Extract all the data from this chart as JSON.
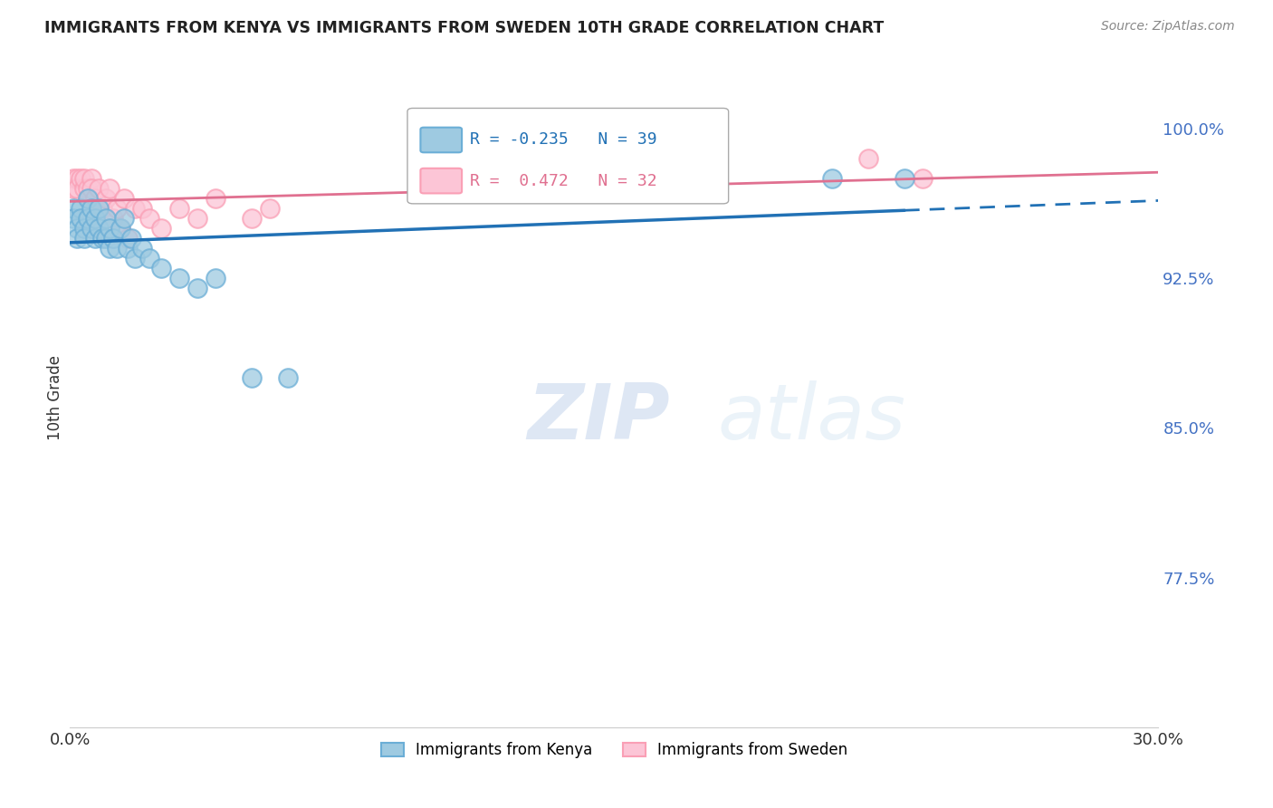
{
  "title": "IMMIGRANTS FROM KENYA VS IMMIGRANTS FROM SWEDEN 10TH GRADE CORRELATION CHART",
  "source": "Source: ZipAtlas.com",
  "ylabel": "10th Grade",
  "xlim": [
    0.0,
    0.3
  ],
  "ylim": [
    0.7,
    1.03
  ],
  "ytick_positions": [
    1.0,
    0.925,
    0.85,
    0.775
  ],
  "ytick_labels": [
    "100.0%",
    "92.5%",
    "85.0%",
    "77.5%"
  ],
  "kenya_color": "#6baed6",
  "kenya_color_fill": "#9ecae1",
  "sweden_color": "#fa9fb5",
  "sweden_color_fill": "#fcc5d6",
  "trend_kenya_color": "#2171b5",
  "trend_sweden_color": "#e07090",
  "R_kenya": -0.235,
  "N_kenya": 39,
  "R_sweden": 0.472,
  "N_sweden": 32,
  "kenya_x": [
    0.001,
    0.001,
    0.002,
    0.002,
    0.003,
    0.003,
    0.004,
    0.004,
    0.005,
    0.005,
    0.006,
    0.006,
    0.007,
    0.007,
    0.008,
    0.008,
    0.009,
    0.01,
    0.01,
    0.011,
    0.011,
    0.012,
    0.013,
    0.014,
    0.015,
    0.016,
    0.017,
    0.018,
    0.02,
    0.022,
    0.025,
    0.03,
    0.035,
    0.04,
    0.05,
    0.06,
    0.17,
    0.21,
    0.23
  ],
  "kenya_y": [
    0.96,
    0.955,
    0.95,
    0.945,
    0.96,
    0.955,
    0.95,
    0.945,
    0.965,
    0.955,
    0.96,
    0.95,
    0.955,
    0.945,
    0.96,
    0.95,
    0.945,
    0.955,
    0.945,
    0.95,
    0.94,
    0.945,
    0.94,
    0.95,
    0.955,
    0.94,
    0.945,
    0.935,
    0.94,
    0.935,
    0.93,
    0.925,
    0.92,
    0.925,
    0.875,
    0.875,
    0.97,
    0.975,
    0.975
  ],
  "sweden_x": [
    0.001,
    0.001,
    0.002,
    0.002,
    0.003,
    0.004,
    0.004,
    0.005,
    0.005,
    0.006,
    0.006,
    0.007,
    0.008,
    0.009,
    0.01,
    0.011,
    0.012,
    0.013,
    0.014,
    0.015,
    0.016,
    0.018,
    0.02,
    0.022,
    0.025,
    0.03,
    0.035,
    0.04,
    0.05,
    0.055,
    0.22,
    0.235
  ],
  "sweden_y": [
    0.975,
    0.97,
    0.975,
    0.97,
    0.975,
    0.97,
    0.975,
    0.97,
    0.965,
    0.975,
    0.97,
    0.965,
    0.97,
    0.96,
    0.965,
    0.97,
    0.955,
    0.96,
    0.95,
    0.965,
    0.945,
    0.96,
    0.96,
    0.955,
    0.95,
    0.96,
    0.955,
    0.965,
    0.955,
    0.96,
    0.985,
    0.975
  ],
  "watermark_zip": "ZIP",
  "watermark_atlas": "atlas",
  "background_color": "#ffffff",
  "grid_color": "#cccccc"
}
